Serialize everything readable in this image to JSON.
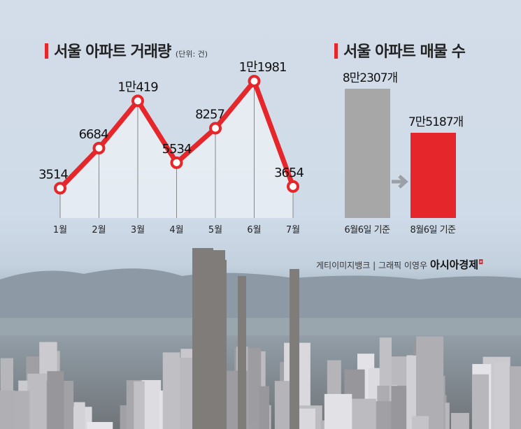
{
  "chart_data": [
    {
      "type": "line",
      "title": "서울 아파트 거래량",
      "unit": "(단위: 건)",
      "categories": [
        "1월",
        "2월",
        "3월",
        "4월",
        "5월",
        "6월",
        "7월"
      ],
      "values": [
        3514,
        6684,
        10419,
        5534,
        8257,
        11981,
        3654
      ],
      "labels": [
        "3514",
        "6684",
        "1만419",
        "5534",
        "8257",
        "1만1981",
        "3654"
      ],
      "color": "#e5262b"
    },
    {
      "type": "bar",
      "title": "서울 아파트 매물 수",
      "categories": [
        "6월6일 기준",
        "8월6일 기준"
      ],
      "values": [
        82307,
        75187
      ],
      "labels": [
        "8만2307개",
        "7만5187개"
      ],
      "colors": [
        "#a7a7a7",
        "#e5262b"
      ]
    }
  ],
  "credit": {
    "source": "게티이미지뱅크 | 그래픽 이영우",
    "brand": "아시아경제"
  }
}
